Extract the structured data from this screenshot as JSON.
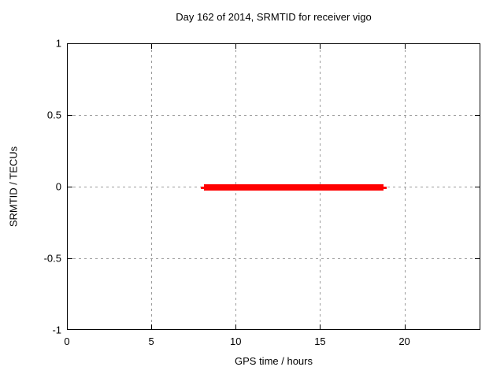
{
  "chart_data": {
    "type": "line",
    "title": "Day 162 of 2014, SRMTID for receiver vigo",
    "xlabel": "GPS time / hours",
    "ylabel": "SRMTID / TECUs",
    "xlim": [
      0,
      24.5
    ],
    "ylim": [
      -1,
      1
    ],
    "grid": true,
    "legend": "none",
    "x_ticks": [
      {
        "value": 0,
        "label": "0"
      },
      {
        "value": 5,
        "label": "5"
      },
      {
        "value": 10,
        "label": "10"
      },
      {
        "value": 15,
        "label": "15"
      },
      {
        "value": 20,
        "label": "20"
      }
    ],
    "y_ticks": [
      {
        "value": -1,
        "label": "-1"
      },
      {
        "value": -0.5,
        "label": "-0.5"
      },
      {
        "value": 0,
        "label": "0"
      },
      {
        "value": 0.5,
        "label": "0.5"
      },
      {
        "value": 1,
        "label": "1"
      }
    ],
    "series": [
      {
        "name": "SRMTID",
        "color": "#ff0000",
        "style": "thick horizontal segment",
        "x": [
          7.9,
          18.9
        ],
        "y": [
          0,
          0
        ]
      }
    ]
  },
  "colors": {
    "series": "#ff0000",
    "grid": "#9c9c9c",
    "border": "#000000",
    "background": "#ffffff",
    "text": "#000000"
  }
}
